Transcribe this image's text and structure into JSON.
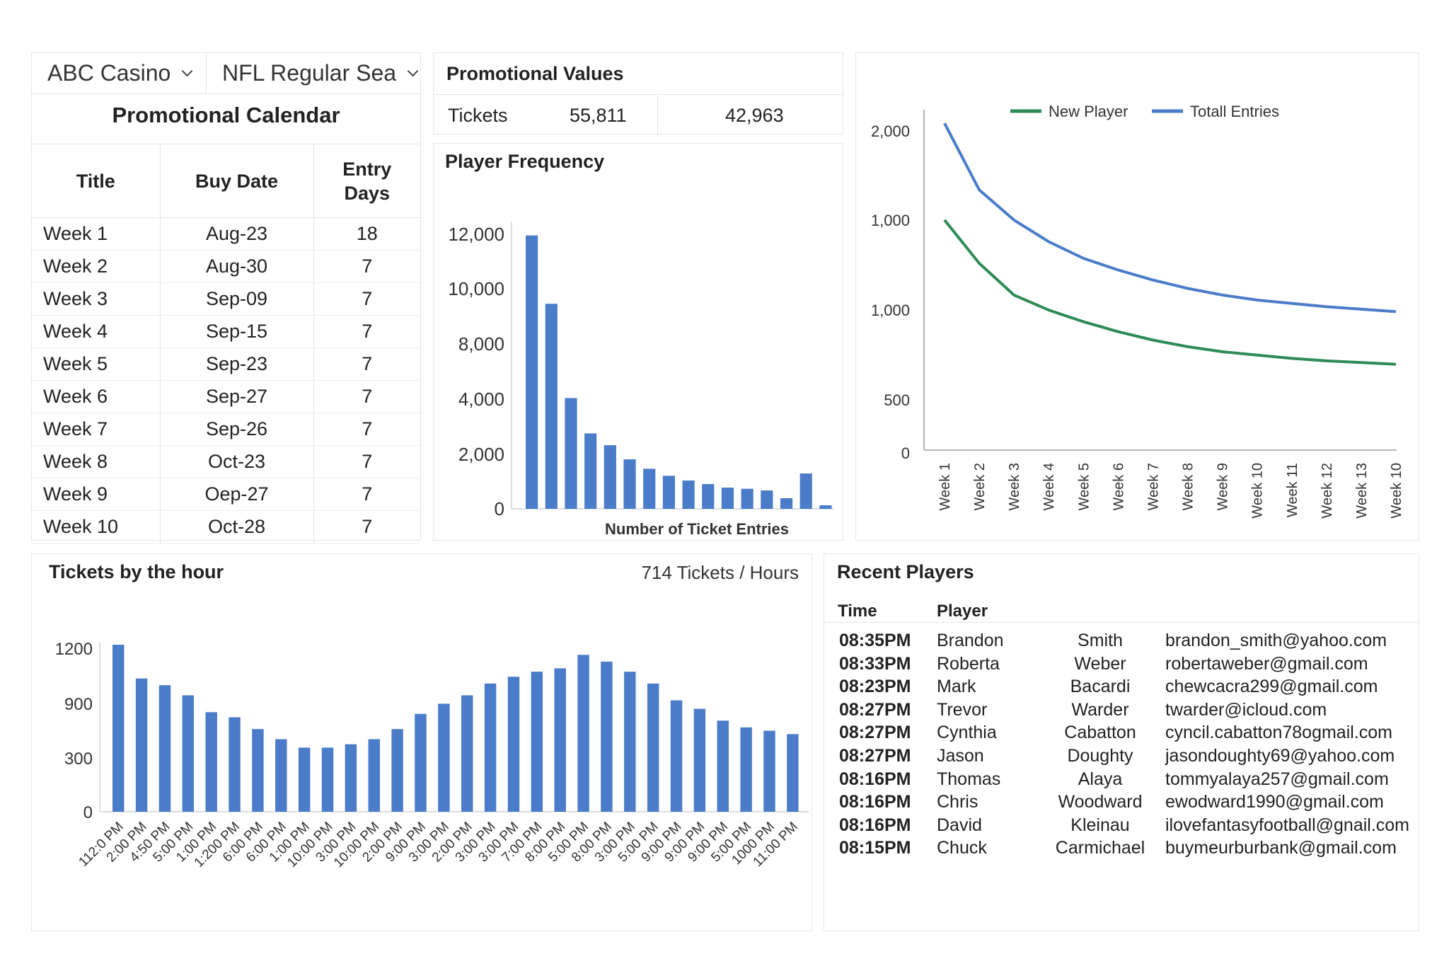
{
  "filters": {
    "venue": "ABC Casino",
    "season": "NFL Regular Sea"
  },
  "calendar": {
    "title": "Promotional Calendar",
    "headers": {
      "title": "Title",
      "buy_date": "Buy Date",
      "entry_days_line1": "Entry",
      "entry_days_line2": "Days"
    },
    "rows": [
      {
        "title": "Week 1",
        "buy_date": "Aug-23",
        "entry_days": "18"
      },
      {
        "title": "Week 2",
        "buy_date": "Aug-30",
        "entry_days": "7"
      },
      {
        "title": "Week 3",
        "buy_date": "Sep-09",
        "entry_days": "7"
      },
      {
        "title": "Week 4",
        "buy_date": "Sep-15",
        "entry_days": "7"
      },
      {
        "title": "Week 5",
        "buy_date": "Sep-23",
        "entry_days": "7"
      },
      {
        "title": "Week 6",
        "buy_date": "Sep-27",
        "entry_days": "7"
      },
      {
        "title": "Week 7",
        "buy_date": "Sep-26",
        "entry_days": "7"
      },
      {
        "title": "Week 8",
        "buy_date": "Oct-23",
        "entry_days": "7"
      },
      {
        "title": "Week 9",
        "buy_date": "Oep-27",
        "entry_days": "7"
      },
      {
        "title": "Week 10",
        "buy_date": "Oct-28",
        "entry_days": "7"
      }
    ]
  },
  "promo_values": {
    "title": "Promotional Values",
    "label": "Tickets",
    "value1": "55,811",
    "value2": "42,963"
  },
  "player_frequency": {
    "title": "Player Frequency",
    "chart_data": {
      "type": "bar",
      "xlabel": "Number of Ticket Entries",
      "ylabel": "",
      "y_ticks": [
        "0",
        "2,000",
        "4,000",
        "8,000",
        "10,000",
        "12,000"
      ],
      "values": [
        11600,
        8700,
        4700,
        3200,
        2700,
        2100,
        1700,
        1400,
        1200,
        1050,
        900,
        850,
        780,
        450,
        1500,
        150
      ],
      "color": "#4a7cc9"
    }
  },
  "line_chart": {
    "chart_data": {
      "type": "line",
      "categories": [
        "Week 1",
        "Week 2",
        "Week 3",
        "Week 4",
        "Week 5",
        "Week 6",
        "Week 7",
        "Week 8",
        "Week 9",
        "Week 10",
        "Week 11",
        "Week 12",
        "Week 13",
        "Week 10"
      ],
      "y_ticks": [
        "0",
        "500",
        "1,000",
        "1,000",
        "2,000"
      ],
      "legend_position": "top",
      "series": [
        {
          "name": "New Player",
          "color": "#2e8b57",
          "values": [
            1380,
            1120,
            930,
            840,
            770,
            710,
            660,
            620,
            590,
            570,
            550,
            535,
            525,
            515
          ]
        },
        {
          "name": "Totall Entries",
          "color": "#4a7cc9",
          "values": [
            1960,
            1560,
            1380,
            1250,
            1150,
            1080,
            1020,
            970,
            930,
            900,
            880,
            860,
            845,
            830
          ]
        }
      ]
    }
  },
  "tickets_by_hour": {
    "title": "Tickets by the hour",
    "summary": "714 Tickets / Hours",
    "chart_data": {
      "type": "bar",
      "y_ticks": [
        "0",
        "300",
        "900",
        "1200"
      ],
      "color": "#4a7cc9",
      "categories": [
        "112:0 PM",
        "2:00 PM",
        "4:50 PM",
        "5:00 PM",
        "1:00 PM",
        "1:200 PM",
        "6:00 PM",
        "6:00 PM",
        "1:00 PM",
        "10:00 PM",
        "3:00 PM",
        "10:00 PM",
        "2:00 PM",
        "9:00 PM",
        "3:00 PM",
        "2:00 PM",
        "3:00 PM",
        "3:00 PM",
        "7:00 PM",
        "8:00 PM",
        "5:00 PM",
        "8:00 PM",
        "3:00 PM",
        "5:00 PM",
        "9:00 PM",
        "9:00 PM",
        "9:00 PM",
        "5:00 PM",
        "1000 PM",
        "11:00 PM"
      ],
      "values": [
        990,
        790,
        750,
        690,
        590,
        560,
        490,
        430,
        380,
        380,
        400,
        430,
        490,
        580,
        640,
        690,
        760,
        800,
        830,
        850,
        930,
        890,
        830,
        760,
        660,
        610,
        540,
        500,
        480,
        460
      ]
    }
  },
  "recent_players": {
    "title": "Recent Players",
    "headers": {
      "time": "Time",
      "player": "Player"
    },
    "rows": [
      {
        "time": "08:35PM",
        "first": "Brandon",
        "last": "Smith",
        "email": "brandon_smith@yahoo.com"
      },
      {
        "time": "08:33PM",
        "first": "Roberta",
        "last": "Weber",
        "email": "robertaweber@gmail.com"
      },
      {
        "time": "08:23PM",
        "first": "Mark",
        "last": "Bacardi",
        "email": "chewcacra299@gmail.com"
      },
      {
        "time": "08:27PM",
        "first": "Trevor",
        "last": "Warder",
        "email": "twarder@icloud.com"
      },
      {
        "time": "08:27PM",
        "first": "Cynthia",
        "last": "Cabatton",
        "email": "cyncil.cabatton78ogmail.com"
      },
      {
        "time": "08:27PM",
        "first": "Jason",
        "last": "Doughty",
        "email": "jasondoughty69@yahoo.com"
      },
      {
        "time": "08:16PM",
        "first": "Thomas",
        "last": "Alaya",
        "email": "tommyalaya257@gmail.com"
      },
      {
        "time": "08:16PM",
        "first": "Chris",
        "last": "Woodward",
        "email": "ewodward1990@gmail.com"
      },
      {
        "time": "08:16PM",
        "first": "David",
        "last": "Kleinau",
        "email": "ilovefantasyfootball@gnail.com"
      },
      {
        "time": "08:15PM",
        "first": "Chuck",
        "last": "Carmichael",
        "email": "buymeurburbank@gmail.com"
      }
    ]
  }
}
